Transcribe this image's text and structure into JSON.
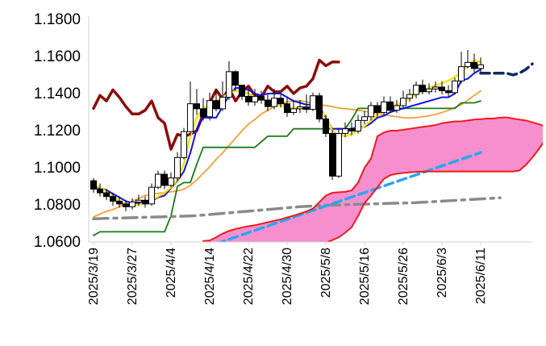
{
  "chart_data": {
    "type": "candlestick",
    "xlabel": "",
    "ylabel": "",
    "ylim": [
      1.06,
      1.18
    ],
    "grid": false,
    "y_ticks": [
      "1.0600",
      "1.0800",
      "1.1000",
      "1.1200",
      "1.1400",
      "1.1600",
      "1.1800"
    ],
    "x_tick_labels": [
      "2025/3/19",
      "2025/3/27",
      "2025/4/4",
      "2025/4/14",
      "2025/4/22",
      "2025/4/30",
      "2025/5/8",
      "2025/5/16",
      "2025/5/26",
      "2025/6/3",
      "2025/6/11"
    ],
    "x_tick_index": [
      0,
      6,
      12,
      18,
      24,
      30,
      36,
      42,
      48,
      54,
      60
    ],
    "n_slots": 70,
    "candles": {
      "start_index": 0,
      "o": [
        1.093,
        1.0885,
        1.0865,
        1.0845,
        1.082,
        1.0805,
        1.079,
        1.0815,
        1.0825,
        1.0805,
        1.0895,
        1.0965,
        1.0905,
        1.0945,
        1.1055,
        1.1195,
        1.1345,
        1.1318,
        1.1275,
        1.1362,
        1.1318,
        1.138,
        1.1518,
        1.1445,
        1.1385,
        1.1355,
        1.1385,
        1.1365,
        1.133,
        1.1375,
        1.1345,
        1.1298,
        1.1318,
        1.1328,
        1.1315,
        1.1388,
        1.1263,
        1.1185,
        1.0955,
        1.1185,
        1.121,
        1.1198,
        1.1255,
        1.1275,
        1.1335,
        1.1298,
        1.1355,
        1.131,
        1.1335,
        1.1375,
        1.1395,
        1.1445,
        1.141,
        1.1425,
        1.1435,
        1.1415,
        1.1405,
        1.1468,
        1.1545,
        1.1568,
        1.1535
      ],
      "c": [
        1.0885,
        1.0865,
        1.0845,
        1.082,
        1.0805,
        1.079,
        1.0815,
        1.0825,
        1.0805,
        1.0895,
        1.0965,
        1.0905,
        1.0945,
        1.1055,
        1.1195,
        1.1345,
        1.1318,
        1.1275,
        1.1362,
        1.1318,
        1.138,
        1.1518,
        1.1445,
        1.1385,
        1.1355,
        1.1385,
        1.1365,
        1.133,
        1.1375,
        1.1345,
        1.1298,
        1.1318,
        1.1328,
        1.1315,
        1.1388,
        1.1263,
        1.1185,
        1.0955,
        1.1185,
        1.121,
        1.1198,
        1.1255,
        1.1275,
        1.1335,
        1.1298,
        1.1355,
        1.131,
        1.1335,
        1.1375,
        1.1395,
        1.1445,
        1.141,
        1.1425,
        1.1435,
        1.1415,
        1.1405,
        1.1468,
        1.1545,
        1.1568,
        1.1535,
        1.1555
      ],
      "h": [
        1.0945,
        1.0915,
        1.0885,
        1.0865,
        1.0845,
        1.0825,
        1.0835,
        1.0855,
        1.0845,
        1.0915,
        1.0985,
        1.0985,
        1.0975,
        1.1085,
        1.1215,
        1.1465,
        1.1425,
        1.1375,
        1.1405,
        1.1415,
        1.1465,
        1.1575,
        1.1525,
        1.1445,
        1.1425,
        1.1425,
        1.1415,
        1.1395,
        1.1425,
        1.1395,
        1.1375,
        1.1365,
        1.1365,
        1.1395,
        1.1405,
        1.1405,
        1.1285,
        1.1205,
        1.1215,
        1.1245,
        1.1245,
        1.1285,
        1.1305,
        1.1355,
        1.1355,
        1.1385,
        1.1385,
        1.1365,
        1.1415,
        1.1425,
        1.1465,
        1.1475,
        1.1455,
        1.1465,
        1.1465,
        1.1445,
        1.1485,
        1.1625,
        1.1635,
        1.1615,
        1.1595
      ],
      "l": [
        1.0865,
        1.0845,
        1.0825,
        1.0795,
        1.0785,
        1.0765,
        1.0775,
        1.0795,
        1.0785,
        1.0795,
        1.0885,
        1.0885,
        1.0895,
        1.0925,
        1.1045,
        1.1175,
        1.1285,
        1.1255,
        1.1255,
        1.1305,
        1.1305,
        1.1365,
        1.1415,
        1.1365,
        1.1335,
        1.1335,
        1.1345,
        1.1305,
        1.1315,
        1.1325,
        1.1275,
        1.1285,
        1.1295,
        1.1295,
        1.1305,
        1.1245,
        1.1165,
        1.0935,
        1.0945,
        1.1165,
        1.1175,
        1.1185,
        1.1235,
        1.1255,
        1.1275,
        1.1285,
        1.1295,
        1.1295,
        1.1315,
        1.1355,
        1.1375,
        1.1395,
        1.1395,
        1.1405,
        1.1395,
        1.1385,
        1.1395,
        1.1455,
        1.1535,
        1.1515,
        1.1515
      ]
    },
    "series": [
      {
        "color": "#8a0e0e",
        "style": "solid",
        "width": 3.5,
        "start_index": 0,
        "values": [
          1.132,
          1.139,
          1.136,
          1.142,
          1.138,
          1.133,
          1.129,
          1.129,
          1.131,
          1.136,
          1.127,
          1.124,
          1.11,
          1.118,
          1.117,
          1.118,
          1.12,
          1.129,
          1.135,
          1.142,
          1.137,
          1.143,
          1.136,
          1.141,
          1.144,
          1.139,
          1.138,
          1.144,
          1.141,
          1.141,
          1.144,
          1.14,
          1.143,
          1.144,
          1.148,
          1.158,
          1.155,
          1.157,
          1.157
        ]
      },
      {
        "color": "#f4a03a",
        "style": "solid",
        "width": 1.8,
        "start_index": 0,
        "values": [
          1.0735,
          1.075,
          1.0765,
          1.0775,
          1.079,
          1.0805,
          1.082,
          1.0835,
          1.085,
          1.0858,
          1.0862,
          1.0866,
          1.087,
          1.0875,
          1.0885,
          1.0905,
          1.0935,
          1.097,
          1.1005,
          1.1045,
          1.108,
          1.112,
          1.116,
          1.12,
          1.1235,
          1.126,
          1.129,
          1.131,
          1.133,
          1.1345,
          1.1355,
          1.136,
          1.1362,
          1.1355,
          1.1348,
          1.134,
          1.1335,
          1.133,
          1.1322,
          1.1318,
          1.1315,
          1.131,
          1.1305,
          1.1298,
          1.1292,
          1.1285,
          1.128,
          1.1275,
          1.127,
          1.1268,
          1.127,
          1.1275,
          1.128,
          1.1288,
          1.1298,
          1.131,
          1.1325,
          1.134,
          1.1365,
          1.139,
          1.1415
        ]
      },
      {
        "color": "#1a7a1a",
        "style": "solid",
        "width": 1.8,
        "start_index": 0,
        "values": [
          1.0635,
          1.0655,
          1.0655,
          1.0655,
          1.0655,
          1.0655,
          1.0655,
          1.0655,
          1.0655,
          1.0655,
          1.0655,
          1.0655,
          1.074,
          1.09,
          1.092,
          1.092,
          1.102,
          1.111,
          1.111,
          1.111,
          1.111,
          1.111,
          1.111,
          1.111,
          1.111,
          1.111,
          1.114,
          1.117,
          1.117,
          1.117,
          1.117,
          1.121,
          1.121,
          1.121,
          1.121,
          1.121,
          1.121,
          1.121,
          1.121,
          1.121,
          1.126,
          1.132,
          1.132,
          1.132,
          1.132,
          1.132,
          1.132,
          1.132,
          1.132,
          1.132,
          1.132,
          1.132,
          1.132,
          1.132,
          1.132,
          1.132,
          1.132,
          1.135,
          1.135,
          1.135,
          1.136
        ]
      },
      {
        "color": "#1010ee",
        "style": "solid",
        "width": 2,
        "start_index": 0,
        "values": [
          1.09,
          1.089,
          1.088,
          1.086,
          1.084,
          1.082,
          1.081,
          1.081,
          1.081,
          1.082,
          1.084,
          1.085,
          1.089,
          1.093,
          1.098,
          1.108,
          1.121,
          1.127,
          1.127,
          1.127,
          1.133,
          1.139,
          1.143,
          1.143,
          1.142,
          1.14,
          1.139,
          1.14,
          1.14,
          1.14,
          1.138,
          1.136,
          1.135,
          1.134,
          1.134,
          1.133,
          1.127,
          1.121,
          1.121,
          1.121,
          1.121,
          1.122,
          1.122,
          1.124,
          1.127,
          1.128,
          1.13,
          1.131,
          1.132,
          1.133,
          1.134,
          1.135,
          1.136,
          1.137,
          1.138,
          1.138,
          1.14,
          1.147,
          1.148,
          1.151,
          1.153
        ]
      },
      {
        "color": "#f2e21b",
        "style": "solid",
        "width": 2.5,
        "start_index": 0,
        "values": [
          1.0905,
          1.0895,
          1.087,
          1.0845,
          1.082,
          1.0805,
          1.0795,
          1.08,
          1.0812,
          1.0825,
          1.0845,
          1.0865,
          1.0895,
          1.0935,
          1.102,
          1.117,
          1.127,
          1.132,
          1.134,
          1.136,
          1.138,
          1.14,
          1.1415,
          1.1415,
          1.14,
          1.138,
          1.137,
          1.1355,
          1.1345,
          1.1335,
          1.133,
          1.1322,
          1.1318,
          1.132,
          1.1322,
          1.131,
          1.128,
          1.12,
          1.1175,
          1.117,
          1.118,
          1.12,
          1.1225,
          1.1255,
          1.1285,
          1.1305,
          1.1325,
          1.134,
          1.1355,
          1.1375,
          1.1395,
          1.1415,
          1.143,
          1.1445,
          1.1455,
          1.147,
          1.149,
          1.1515,
          1.155,
          1.158,
          1.157
        ]
      },
      {
        "color": "#8a8a8a",
        "style": "dashdot",
        "width": 3.5,
        "start_index": 0,
        "values": [
          1.0725,
          1.0726,
          1.0727,
          1.0728,
          1.0729,
          1.073,
          1.0731,
          1.0732,
          1.0733,
          1.0734,
          1.0735,
          1.0736,
          1.0737,
          1.0738,
          1.0739,
          1.074,
          1.0742,
          1.0745,
          1.0748,
          1.0751,
          1.0754,
          1.0757,
          1.076,
          1.0763,
          1.0766,
          1.0769,
          1.0772,
          1.0775,
          1.0778,
          1.0781,
          1.0784,
          1.0787,
          1.079,
          1.0792,
          1.0794,
          1.0796,
          1.0798,
          1.0799,
          1.08,
          1.0801,
          1.0802,
          1.0803,
          1.0804,
          1.0805,
          1.0806,
          1.0807,
          1.0808,
          1.0809,
          1.081,
          1.0811,
          1.0812,
          1.0814,
          1.0816,
          1.0818,
          1.082,
          1.0822,
          1.0824,
          1.0826,
          1.0828,
          1.083,
          1.0832,
          1.0834,
          1.0836,
          1.0838
        ]
      },
      {
        "color": "#2aa6f0",
        "style": "dashed",
        "width": 3.5,
        "start_index": 19,
        "values": [
          1.059,
          1.0602,
          1.0614,
          1.0626,
          1.0638,
          1.065,
          1.0662,
          1.0674,
          1.0686,
          1.0698,
          1.071,
          1.0722,
          1.0734,
          1.0746,
          1.0758,
          1.077,
          1.0782,
          1.0794,
          1.0806,
          1.0818,
          1.083,
          1.0842,
          1.0854,
          1.0866,
          1.0878,
          1.089,
          1.0902,
          1.0914,
          1.0926,
          1.0938,
          1.095,
          1.0962,
          1.0974,
          1.0986,
          1.0998,
          1.101,
          1.1022,
          1.1034,
          1.1046,
          1.1058,
          1.107,
          1.1082
        ]
      },
      {
        "color": "#0d2b60",
        "style": "dashed",
        "width": 3.5,
        "start_index": 60,
        "values": [
          1.151,
          1.151,
          1.151,
          1.151,
          1.151,
          1.15,
          1.151,
          1.153,
          1.156
        ]
      },
      {
        "color": "#ee1b1b",
        "style": "solid",
        "width": 2,
        "start_index": 17,
        "values": [
          1.0605,
          1.0608,
          1.0625,
          1.0645,
          1.066,
          1.067,
          1.0678,
          1.0685,
          1.069,
          1.0698,
          1.0706,
          1.0714,
          1.0722,
          1.0732,
          1.0742,
          1.0753,
          1.0765,
          1.078,
          1.0815,
          1.085,
          1.0865,
          1.0868,
          1.087,
          1.0878,
          1.092,
          1.1,
          1.105,
          1.117,
          1.119,
          1.12,
          1.12,
          1.1205,
          1.121,
          1.1215,
          1.122,
          1.1225,
          1.123,
          1.124,
          1.1245,
          1.125,
          1.125,
          1.1255,
          1.126,
          1.1262,
          1.1265,
          1.1265,
          1.127,
          1.1272,
          1.1265,
          1.126,
          1.1255,
          1.1245,
          1.1235,
          1.1222,
          1.1218,
          1.1225,
          1.1245,
          1.1265,
          1.127,
          1.126
        ]
      },
      {
        "color": "#ee1b1b",
        "style": "solid",
        "width": 2,
        "start_index": 17,
        "values": [
          1.0595,
          1.0595,
          1.0595,
          1.0595,
          1.0595,
          1.0595,
          1.0595,
          1.0595,
          1.0595,
          1.0595,
          1.0595,
          1.0595,
          1.0595,
          1.0595,
          1.0595,
          1.0595,
          1.0595,
          1.0595,
          1.0595,
          1.0595,
          1.061,
          1.0625,
          1.065,
          1.068,
          1.074,
          1.081,
          1.085,
          1.0895,
          1.094,
          1.096,
          1.0968,
          1.0972,
          1.0975,
          1.0978,
          1.0979,
          1.098,
          1.098,
          1.098,
          1.098,
          1.098,
          1.098,
          1.098,
          1.098,
          1.098,
          1.098,
          1.098,
          1.098,
          1.098,
          1.098,
          1.0985,
          1.1015,
          1.1055,
          1.11,
          1.115,
          1.1155,
          1.1155,
          1.1155,
          1.1155,
          1.1155,
          1.1155
        ]
      }
    ],
    "fill_between": {
      "color": "#f78fcf",
      "upper_series": 8,
      "lower_series": 9
    }
  }
}
